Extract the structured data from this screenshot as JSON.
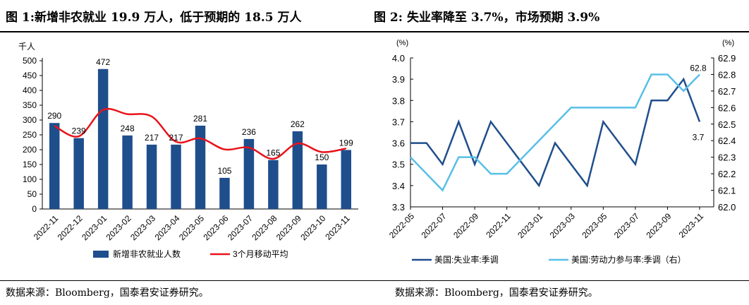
{
  "figure1": {
    "title": "图 1:新增非农就业 19.9 万人，低于预期的 18.5 万人",
    "source": "数据来源：Bloomberg，国泰君安证券研究。"
  },
  "figure2": {
    "title": "图 2:  失业率降至 3.7%，市场预期 3.9%",
    "source": "数据来源：Bloomberg，国泰君安证券研究。"
  },
  "chart_data": [
    {
      "type": "bar",
      "unit_label": "千人",
      "categories": [
        "2022-11",
        "2022-12",
        "2023-01",
        "2023-02",
        "2023-03",
        "2023-04",
        "2023-05",
        "2023-06",
        "2023-07",
        "2023-08",
        "2023-09",
        "2023-10",
        "2023-11"
      ],
      "series": [
        {
          "name": "新增非农就业人数",
          "type": "bar",
          "color": "#1f4e8c",
          "values": [
            290,
            239,
            472,
            248,
            217,
            217,
            281,
            105,
            236,
            165,
            262,
            150,
            199
          ]
        },
        {
          "name": "3个月移动平均",
          "type": "line",
          "color": "#e8131b",
          "values": [
            280,
            245,
            334,
            320,
            312,
            227,
            238,
            201,
            207,
            169,
            221,
            192,
            204
          ]
        }
      ],
      "data_labels": [
        "290",
        "239",
        "472",
        "248",
        "217",
        "217",
        "281",
        "105",
        "236",
        "165",
        "262",
        "150",
        "199"
      ],
      "yticks": [
        0,
        50,
        100,
        150,
        200,
        250,
        300,
        350,
        400,
        450,
        500
      ],
      "ylim": [
        0,
        500
      ],
      "legend_position": "bottom"
    },
    {
      "type": "line",
      "left_unit_label": "(%)",
      "right_unit_label": "(%)",
      "x": [
        "2022-05",
        "2022-06",
        "2022-07",
        "2022-08",
        "2022-09",
        "2022-10",
        "2022-11",
        "2022-12",
        "2023-01",
        "2023-02",
        "2023-03",
        "2023-04",
        "2023-05",
        "2023-06",
        "2023-07",
        "2023-08",
        "2023-09",
        "2023-10",
        "2023-11"
      ],
      "xtick_labels": [
        "2022-05",
        "2022-07",
        "2022-09",
        "2022-11",
        "2023-01",
        "2023-03",
        "2023-05",
        "2023-07",
        "2023-09",
        "2023-11"
      ],
      "series": [
        {
          "name": "美国:失业率:季调",
          "axis": "left",
          "color": "#1f4e8c",
          "values": [
            3.6,
            3.6,
            3.5,
            3.7,
            3.5,
            3.7,
            3.6,
            3.5,
            3.4,
            3.6,
            3.5,
            3.4,
            3.7,
            3.6,
            3.5,
            3.8,
            3.8,
            3.9,
            3.7
          ]
        },
        {
          "name": "美国:劳动力参与率:季调（右）",
          "axis": "right",
          "color": "#58bfe8",
          "values": [
            62.3,
            62.2,
            62.1,
            62.3,
            62.3,
            62.2,
            62.2,
            62.3,
            62.4,
            62.5,
            62.6,
            62.6,
            62.6,
            62.6,
            62.6,
            62.8,
            62.8,
            62.7,
            62.8
          ]
        }
      ],
      "end_labels": {
        "left": "3.7",
        "right": "62.8"
      },
      "y_left": {
        "ticks": [
          "3.3",
          "3.4",
          "3.5",
          "3.6",
          "3.7",
          "3.8",
          "3.9",
          "4.0"
        ],
        "lim": [
          3.3,
          4.0
        ]
      },
      "y_right": {
        "ticks": [
          "62.0",
          "62.1",
          "62.2",
          "62.3",
          "62.4",
          "62.5",
          "62.6",
          "62.7",
          "62.8",
          "62.9"
        ],
        "lim": [
          62.0,
          62.9
        ]
      },
      "legend_position": "bottom"
    }
  ]
}
